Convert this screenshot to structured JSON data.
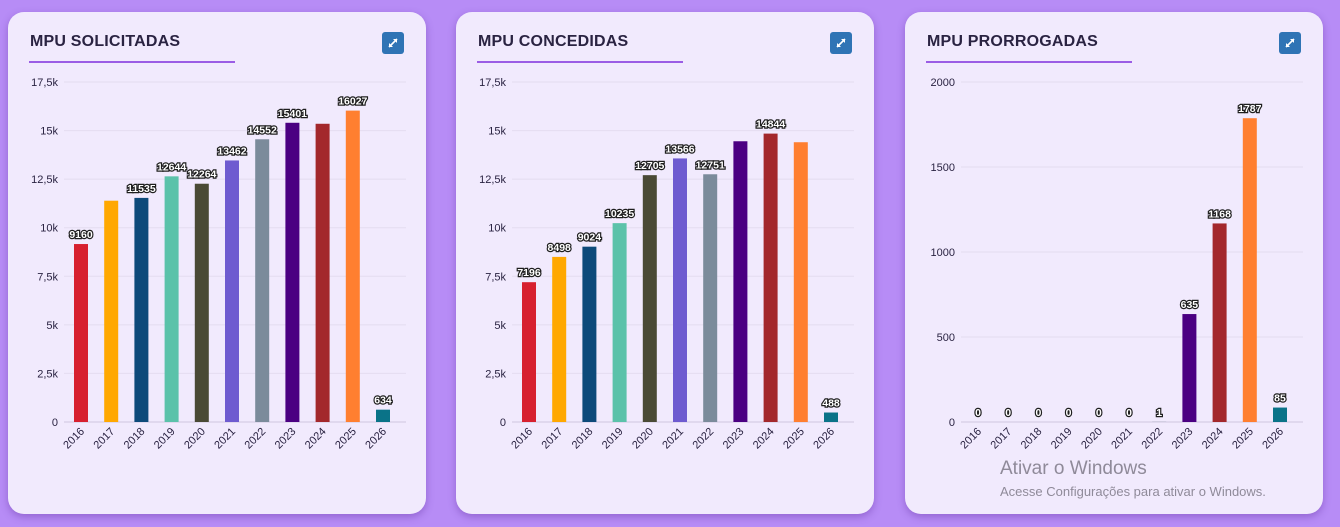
{
  "cards": [
    {
      "title": "MPU SOLICITADAS",
      "expand_icon": "expand-arrows-icon"
    },
    {
      "title": "MPU CONCEDIDAS",
      "expand_icon": "expand-arrows-icon"
    },
    {
      "title": "MPU PRORROGADAS",
      "expand_icon": "expand-arrows-icon"
    }
  ],
  "chart_data": [
    {
      "type": "bar",
      "title": "MPU SOLICITADAS",
      "categories": [
        "2016",
        "2017",
        "2018",
        "2019",
        "2020",
        "2021",
        "2022",
        "2023",
        "2024",
        "2025",
        "2026"
      ],
      "values": [
        9160,
        11390,
        11535,
        12644,
        12264,
        13462,
        14552,
        15401,
        15350,
        16027,
        634
      ],
      "data_labels": [
        "9160",
        "",
        "11535",
        "12644",
        "12264",
        "13462",
        "14552",
        "15401",
        "",
        "16027",
        "634"
      ],
      "ylim": [
        0,
        17500
      ],
      "yticks": [
        0,
        2500,
        5000,
        7500,
        10000,
        12500,
        15000,
        17500
      ],
      "ytick_labels": [
        "0",
        "2,5k",
        "5k",
        "7,5k",
        "10k",
        "12,5k",
        "15k",
        "17,5k"
      ],
      "grid": true
    },
    {
      "type": "bar",
      "title": "MPU CONCEDIDAS",
      "categories": [
        "2016",
        "2017",
        "2018",
        "2019",
        "2020",
        "2021",
        "2022",
        "2023",
        "2024",
        "2025",
        "2026"
      ],
      "values": [
        7196,
        8498,
        9024,
        10235,
        12705,
        13566,
        12751,
        14450,
        14844,
        14400,
        488
      ],
      "data_labels": [
        "7196",
        "8498",
        "9024",
        "10235",
        "12705",
        "13566",
        "12751",
        "",
        "14844",
        "",
        "488"
      ],
      "ylim": [
        0,
        17500
      ],
      "yticks": [
        0,
        2500,
        5000,
        7500,
        10000,
        12500,
        15000,
        17500
      ],
      "ytick_labels": [
        "0",
        "2,5k",
        "5k",
        "7,5k",
        "10k",
        "12,5k",
        "15k",
        "17,5k"
      ],
      "grid": true
    },
    {
      "type": "bar",
      "title": "MPU PRORROGADAS",
      "categories": [
        "2016",
        "2017",
        "2018",
        "2019",
        "2020",
        "2021",
        "2022",
        "2023",
        "2024",
        "2025",
        "2026"
      ],
      "values": [
        0,
        0,
        0,
        0,
        0,
        0,
        1,
        635,
        1168,
        1787,
        85
      ],
      "data_labels": [
        "0",
        "0",
        "0",
        "0",
        "0",
        "0",
        "1",
        "635",
        "1168",
        "1787",
        "85"
      ],
      "ylim": [
        0,
        2000
      ],
      "yticks": [
        0,
        500,
        1000,
        1500,
        2000
      ],
      "ytick_labels": [
        "0",
        "500",
        "1000",
        "1500",
        "2000"
      ],
      "grid": true
    }
  ],
  "colors": [
    "#d7202f",
    "#ffa800",
    "#0d4a7a",
    "#5bc2aa",
    "#4a4a35",
    "#6e5bd0",
    "#7b8b9b",
    "#4b0082",
    "#a3282c",
    "#ff7f30",
    "#0a7388"
  ],
  "colors_prorrogadas": [
    "#d7202f",
    "#ffa800",
    "#0d4a7a",
    "#5bc2aa",
    "#4a4a35",
    "#6e5bd0",
    "#7b8b9b",
    "#4b0082",
    "#a3282c",
    "#ff7f30",
    "#0a7388"
  ],
  "watermark": {
    "title": "Ativar o Windows",
    "subtitle": "Acesse Configurações para ativar o Windows."
  }
}
